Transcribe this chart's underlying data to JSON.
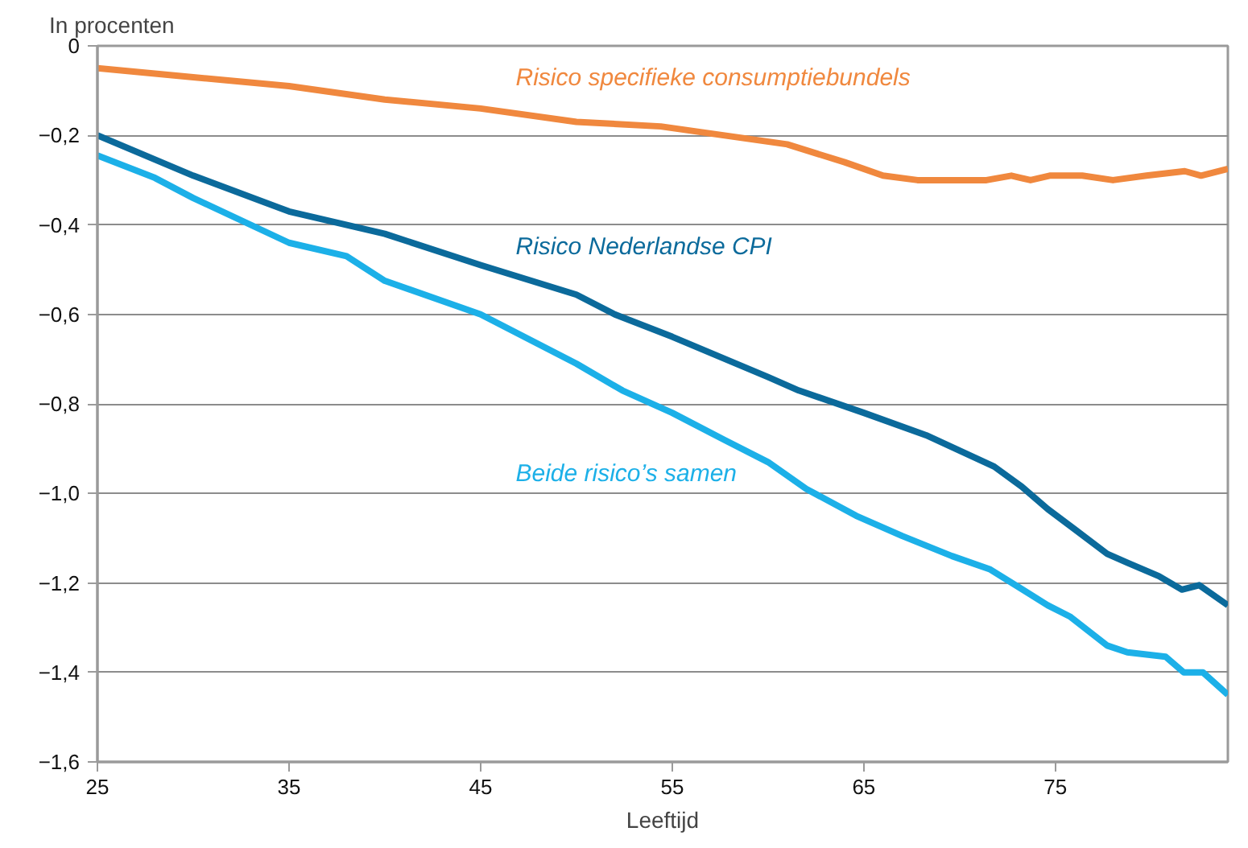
{
  "chart_data": {
    "type": "line",
    "ylabel": "In procenten",
    "xlabel": "Leeftijd",
    "xlim": [
      25,
      84
    ],
    "xticks": [
      25,
      35,
      45,
      55,
      65,
      75
    ],
    "ylim": [
      -1.6,
      0
    ],
    "yticks": [
      0,
      {
        "value": -0.2,
        "label": "−0,2"
      },
      {
        "value": -0.4,
        "label": "−0,4"
      },
      {
        "value": -0.6,
        "label": "−0,6"
      },
      {
        "value": -0.8,
        "label": "−0,8"
      },
      {
        "value": -1.0,
        "label": "−1,0"
      },
      {
        "value": -1.2,
        "label": "−1,2"
      },
      {
        "value": -1.4,
        "label": "−1,4"
      },
      {
        "value": -1.6,
        "label": "−1,6"
      }
    ],
    "grid": "y",
    "line_style": "solid",
    "marker": "none",
    "series": [
      {
        "name": "Risico specifieke consumptiebundels",
        "color": "#f0883e",
        "x": [
          25,
          30,
          35,
          40,
          45,
          50,
          54.4,
          61,
          64,
          66,
          67.8,
          71.4,
          72.7,
          73.7,
          74.7,
          76.4,
          78,
          79.75,
          81.75,
          82.6,
          84
        ],
        "values": [
          -0.05,
          -0.07,
          -0.09,
          -0.12,
          -0.14,
          -0.17,
          -0.18,
          -0.22,
          -0.26,
          -0.29,
          -0.3,
          -0.3,
          -0.29,
          -0.3,
          -0.29,
          -0.29,
          -0.3,
          -0.29,
          -0.28,
          -0.29,
          -0.275
        ]
      },
      {
        "name": "Risico Nederlandse CPI",
        "color": "#0b6a9b",
        "x": [
          25,
          30,
          35,
          40,
          45,
          50,
          52,
          55,
          60,
          61.6,
          65,
          68.25,
          71.8,
          73.25,
          74.6,
          76,
          77.7,
          78.75,
          80.4,
          81.6,
          82.5,
          84
        ],
        "values": [
          -0.2,
          -0.29,
          -0.37,
          -0.42,
          -0.49,
          -0.556,
          -0.6,
          -0.65,
          -0.74,
          -0.77,
          -0.82,
          -0.87,
          -0.94,
          -0.985,
          -1.035,
          -1.08,
          -1.135,
          -1.155,
          -1.185,
          -1.215,
          -1.205,
          -1.25
        ]
      },
      {
        "name": "Beide risico’s samen",
        "color": "#1cb0e8",
        "x": [
          25,
          28,
          30,
          35,
          38,
          40,
          45,
          50,
          52.4,
          55,
          57.7,
          60,
          62,
          64.6,
          67,
          69.6,
          71.6,
          74.6,
          75.75,
          77.7,
          78.75,
          80.75,
          81.7,
          82.7,
          84
        ],
        "values": [
          -0.245,
          -0.295,
          -0.34,
          -0.44,
          -0.47,
          -0.525,
          -0.6,
          -0.71,
          -0.77,
          -0.82,
          -0.88,
          -0.93,
          -0.99,
          -1.05,
          -1.095,
          -1.14,
          -1.17,
          -1.25,
          -1.275,
          -1.34,
          -1.355,
          -1.365,
          -1.4,
          -1.4,
          -1.45
        ]
      }
    ]
  }
}
